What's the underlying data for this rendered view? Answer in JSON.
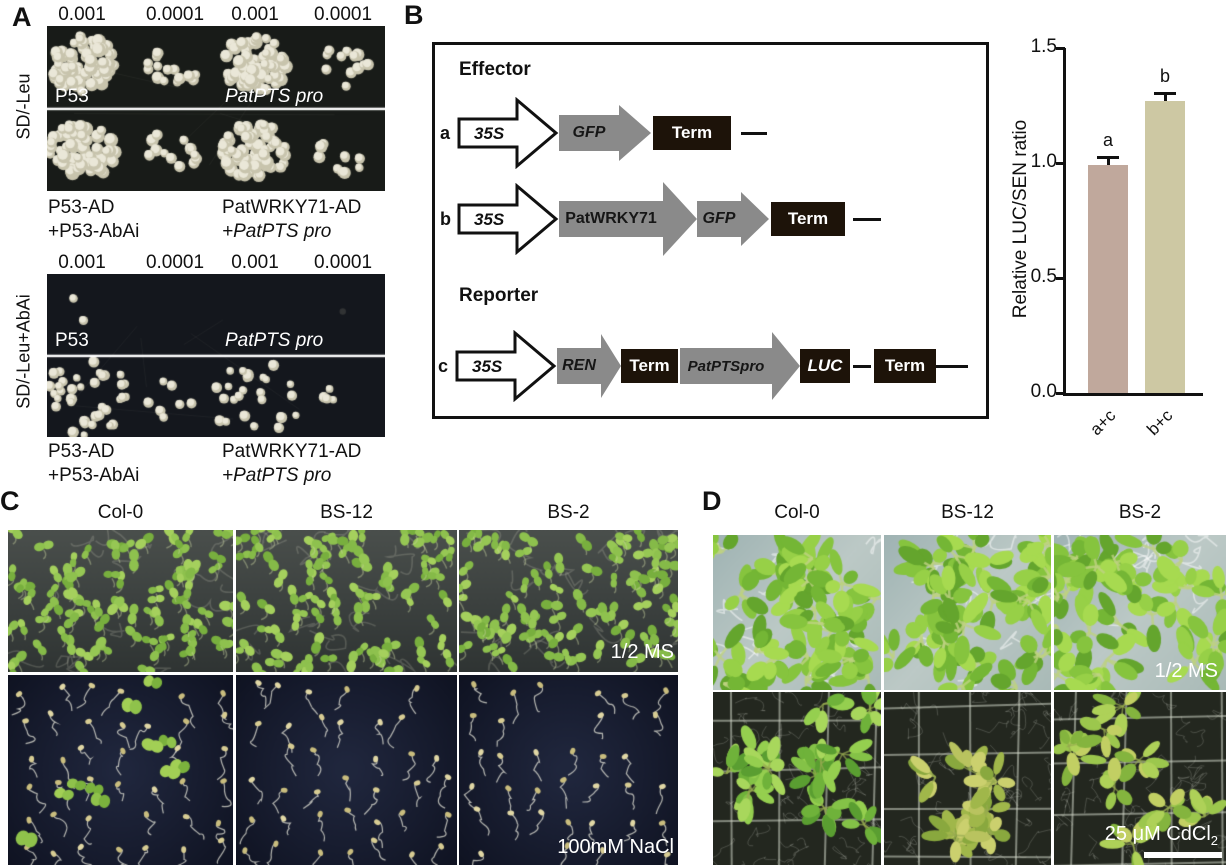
{
  "colors": {
    "bar_ac": "#c0a89c",
    "bar_bc": "#cdc8a3",
    "gene_arrow_gray": "#8a8a8a",
    "term_box_black": "#1d1309",
    "plate_top_bg": "#181b18",
    "plate_bottom_bg": "#14171d"
  },
  "panels": {
    "a": {
      "label": "A",
      "groups": [
        {
          "medium": "SD/-Leu",
          "dilutions": [
            "0.001",
            "0.0001",
            "0.001",
            "0.0001"
          ],
          "plate_label_left": "P53",
          "plate_label_right": "PatPTS pro",
          "captions": [
            [
              "P53-AD",
              "+P53-AbAi"
            ],
            [
              "PatWRKY71-AD",
              "+PatPTS pro"
            ]
          ],
          "spots": [
            [
              "blob",
              "scatter14",
              "blob",
              "scatter12"
            ],
            [
              "blob",
              "scatter13",
              "blob",
              "scatter10"
            ]
          ]
        },
        {
          "medium": "SD/-Leu+AbAi",
          "dilutions": [
            "0.001",
            "0.0001",
            "0.001",
            "0.0001"
          ],
          "plate_label_left": "P53",
          "plate_label_right": "PatPTS pro",
          "captions": [
            [
              "P53-AD",
              "+P53-AbAi"
            ],
            [
              "PatWRKY71-AD",
              "+PatPTS pro"
            ]
          ],
          "spots": [
            [
              "few",
              "none",
              "none",
              "faint"
            ],
            [
              "spread38",
              "sparse7",
              "spread26",
              "sparse5"
            ]
          ]
        }
      ]
    },
    "b": {
      "label": "B",
      "effector_heading": "Effector",
      "reporter_heading": "Reporter",
      "rows": {
        "a": {
          "letter": "a",
          "promoter": "35S",
          "gene1": "GFP",
          "term1": "Term"
        },
        "b": {
          "letter": "b",
          "promoter": "35S",
          "gene1": "PatWRKY71",
          "gene2": "GFP",
          "term1": "Term"
        },
        "c": {
          "letter": "c",
          "promoter": "35S",
          "gene1": "REN",
          "term1": "Term",
          "gene2": "PatPTSpro",
          "luc": "LUC",
          "term2": "Term"
        }
      }
    },
    "c": {
      "label": "C",
      "columns": [
        "Col-0",
        "BS-12",
        "BS-2"
      ],
      "row_labels": [
        "1/2 MS",
        "100mM NaCl"
      ],
      "tiles": [
        [
          "ms",
          "ms",
          "ms"
        ],
        [
          "nacl_green",
          "nacl",
          "nacl"
        ]
      ]
    },
    "d": {
      "label": "D",
      "columns": [
        "Col-0",
        "BS-12",
        "BS-2"
      ],
      "row_label_top": "1/2 MS",
      "cd_label": {
        "text": "25 μM CdCl",
        "sub": "2"
      },
      "tiles": [
        [
          "dtop",
          "dtop",
          "dtop"
        ],
        [
          "dbot_dense",
          "dbot_sparse",
          "dbot_mid"
        ]
      ]
    }
  },
  "chart_data": {
    "type": "bar",
    "title": "",
    "categories": [
      "a+c",
      "b+c"
    ],
    "values": [
      0.99,
      1.27
    ],
    "errors": [
      0.04,
      0.04
    ],
    "sig_letters": [
      "a",
      "b"
    ],
    "xlabel": "",
    "ylabel": "Relative LUC/SEN ratio",
    "ylim": [
      0,
      1.5
    ],
    "yticks": [
      0,
      0.5,
      1,
      1.5
    ],
    "bar_colors": [
      "#c0a89c",
      "#cdc8a3"
    ],
    "grid": false,
    "legend": false
  }
}
